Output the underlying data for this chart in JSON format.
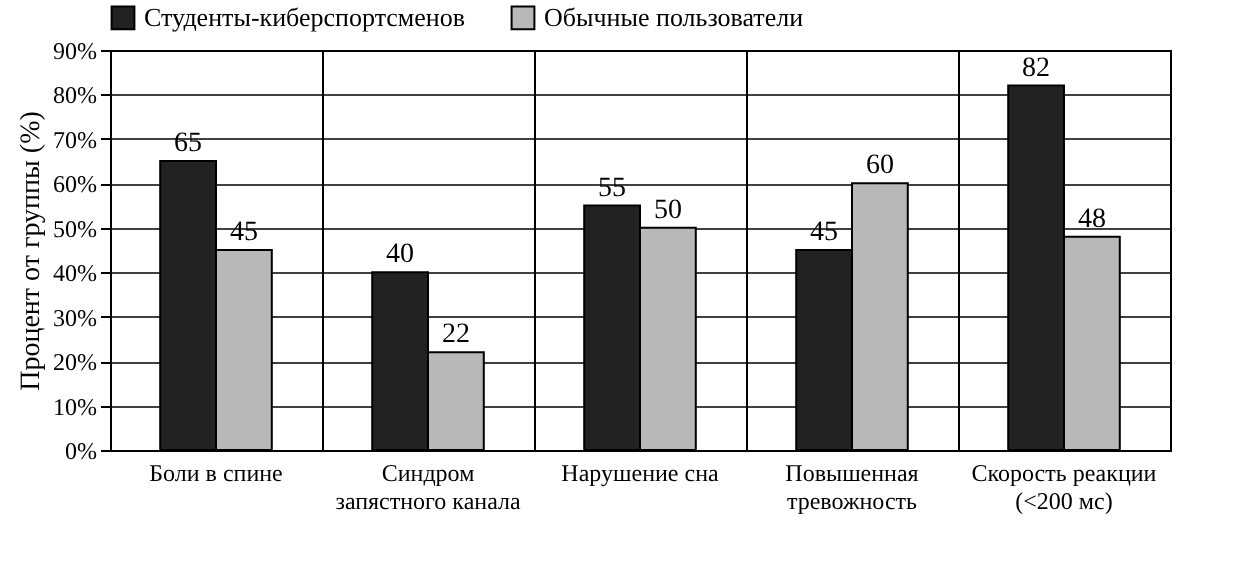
{
  "chart_data": {
    "type": "bar",
    "ylabel": "Процент от группы (%)",
    "categories": [
      "Боли в спине",
      "Синдром запястного канала",
      "Нарушение сна",
      "Повышенная тревожность",
      "Скорость реакции (<200 мс)"
    ],
    "series": [
      {
        "name": "Студенты-киберспортсменов",
        "color": "#222222",
        "values": [
          65,
          40,
          55,
          45,
          82
        ]
      },
      {
        "name": "Обычные пользователи",
        "color": "#b8b8b8",
        "values": [
          45,
          22,
          50,
          60,
          48
        ]
      }
    ],
    "ylim": [
      0,
      90
    ],
    "yticks": [
      {
        "value": 0,
        "label": "0%"
      },
      {
        "value": 10,
        "label": "10%"
      },
      {
        "value": 20,
        "label": "20%"
      },
      {
        "value": 30,
        "label": "30%"
      },
      {
        "value": 40,
        "label": "40%"
      },
      {
        "value": 50,
        "label": "50%"
      },
      {
        "value": 60,
        "label": "60%"
      },
      {
        "value": 70,
        "label": "70%"
      },
      {
        "value": 80,
        "label": "80%"
      },
      {
        "value": 90,
        "label": "90%"
      }
    ],
    "grid": true,
    "legend": "top",
    "data_labels": true
  }
}
